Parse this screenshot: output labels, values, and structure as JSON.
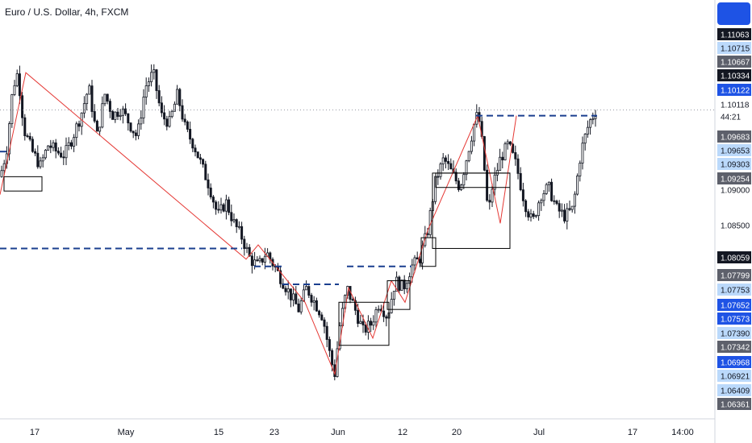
{
  "header": {
    "symbol_title": "Euro / U.S. Dollar, 4h, FXCM"
  },
  "colors": {
    "up": "#131722",
    "down": "#131722",
    "zigzag": "#e53935",
    "level": "#1a3f8f",
    "box": "#000000",
    "tag_dark": "#131722",
    "tag_grey": "#5d606b",
    "tag_blue": "#1e53e5",
    "tag_light_blue": "#bbd9fb"
  },
  "chart_data": {
    "type": "candlestick",
    "title": "Euro / U.S. Dollar, 4h, FXCM",
    "ylim": [
      1.06,
      1.115
    ],
    "x_tick_labels": [
      "17",
      "May",
      "15",
      "23",
      "Jun",
      "12",
      "20",
      "Jul",
      "17",
      "14:00"
    ],
    "price_labels": [
      "1.11063",
      "1.10715",
      "1.10667",
      "1.10334",
      "1.10122",
      "1.10118",
      "44:21",
      "1.09683",
      "1.09653",
      "1.09303",
      "1.09254",
      "1.09000",
      "1.08500",
      "1.08059",
      "1.07799",
      "1.07753",
      "1.07652",
      "1.07573",
      "1.07390",
      "1.07342",
      "1.06968",
      "1.06921",
      "1.06409",
      "1.06361"
    ],
    "price_path": [
      [
        0,
        1.0915
      ],
      [
        8,
        1.095
      ],
      [
        16,
        1.104
      ],
      [
        22,
        1.106
      ],
      [
        30,
        1.098
      ],
      [
        40,
        1.095
      ],
      [
        50,
        1.093
      ],
      [
        60,
        1.096
      ],
      [
        70,
        1.095
      ],
      [
        80,
        1.0945
      ],
      [
        90,
        1.097
      ],
      [
        100,
        1.1
      ],
      [
        110,
        1.104
      ],
      [
        120,
        1.097
      ],
      [
        130,
        1.103
      ],
      [
        140,
        1.1
      ],
      [
        150,
        1.101
      ],
      [
        160,
        1.099
      ],
      [
        170,
        1.097
      ],
      [
        180,
        1.104
      ],
      [
        190,
        1.106
      ],
      [
        200,
        1.1
      ],
      [
        210,
        1.099
      ],
      [
        220,
        1.103
      ],
      [
        230,
        1.098
      ],
      [
        240,
        1.096
      ],
      [
        250,
        1.093
      ],
      [
        260,
        1.09
      ],
      [
        270,
        1.086
      ],
      [
        280,
        1.088
      ],
      [
        290,
        1.085
      ],
      [
        300,
        1.083
      ],
      [
        310,
        1.08
      ],
      [
        320,
        1.079
      ],
      [
        330,
        1.081
      ],
      [
        340,
        1.079
      ],
      [
        350,
        1.077
      ],
      [
        360,
        1.075
      ],
      [
        370,
        1.073
      ],
      [
        380,
        1.076
      ],
      [
        390,
        1.074
      ],
      [
        400,
        1.072
      ],
      [
        410,
        1.066
      ],
      [
        415,
        1.064
      ],
      [
        420,
        1.07
      ],
      [
        430,
        1.076
      ],
      [
        440,
        1.073
      ],
      [
        450,
        1.07
      ],
      [
        460,
        1.071
      ],
      [
        470,
        1.074
      ],
      [
        480,
        1.072
      ],
      [
        490,
        1.077
      ],
      [
        500,
        1.076
      ],
      [
        510,
        1.079
      ],
      [
        520,
        1.08
      ],
      [
        530,
        1.084
      ],
      [
        540,
        1.091
      ],
      [
        550,
        1.094
      ],
      [
        560,
        1.092
      ],
      [
        570,
        1.09
      ],
      [
        580,
        1.095
      ],
      [
        590,
        1.1
      ],
      [
        595,
        1.099
      ],
      [
        600,
        1.093
      ],
      [
        605,
        1.086
      ],
      [
        610,
        1.09
      ],
      [
        620,
        1.094
      ],
      [
        630,
        1.096
      ],
      [
        640,
        1.093
      ],
      [
        650,
        1.088
      ],
      [
        660,
        1.085
      ],
      [
        670,
        1.089
      ],
      [
        680,
        1.09
      ],
      [
        690,
        1.087
      ],
      [
        700,
        1.086
      ],
      [
        710,
        1.087
      ],
      [
        720,
        1.095
      ],
      [
        730,
        1.099
      ],
      [
        740,
        1.101
      ]
    ]
  }
}
